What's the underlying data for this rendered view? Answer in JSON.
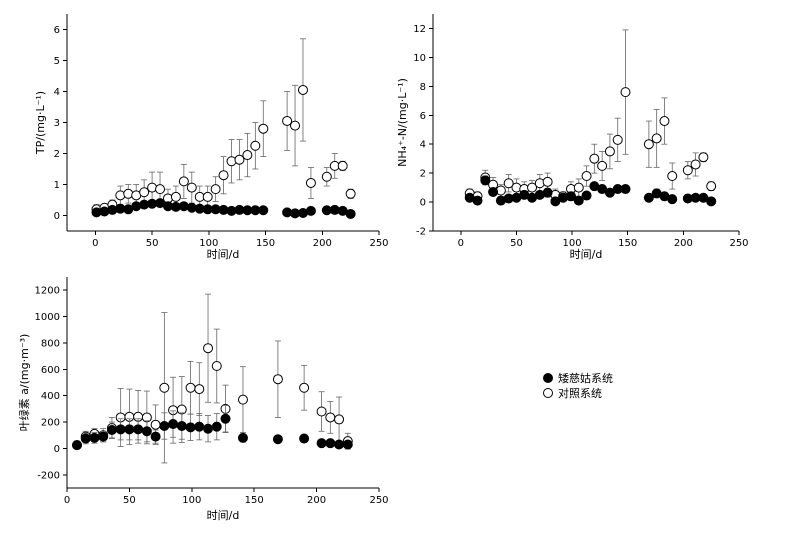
{
  "chart_data": [
    {
      "type": "scatter",
      "id": "tp",
      "xlabel": "时间/d",
      "ylabel": "TP/(mg·L⁻¹)",
      "xlim": [
        -25,
        250
      ],
      "ylim": [
        -0.5,
        6.5
      ],
      "xticks": [
        0,
        50,
        100,
        150,
        200,
        250
      ],
      "yticks": [
        0,
        1,
        2,
        3,
        4,
        5,
        6
      ],
      "series": [
        {
          "name": "矮慈姑系统",
          "marker": "filled-circle",
          "points": [
            [
              1,
              0.1,
              0.05
            ],
            [
              8,
              0.13,
              0.05
            ],
            [
              15,
              0.18,
              0.05
            ],
            [
              22,
              0.22,
              0.05
            ],
            [
              29,
              0.2,
              0.05
            ],
            [
              36,
              0.3,
              0.05
            ],
            [
              43,
              0.35,
              0.05
            ],
            [
              50,
              0.38,
              0.05
            ],
            [
              57,
              0.4,
              0.05
            ],
            [
              64,
              0.3,
              0.05
            ],
            [
              71,
              0.28,
              0.05
            ],
            [
              78,
              0.3,
              0.05
            ],
            [
              85,
              0.25,
              0.05
            ],
            [
              92,
              0.22,
              0.05
            ],
            [
              99,
              0.2,
              0.05
            ],
            [
              106,
              0.2,
              0.05
            ],
            [
              113,
              0.18,
              0.05
            ],
            [
              120,
              0.15,
              0.05
            ],
            [
              127,
              0.18,
              0.05
            ],
            [
              134,
              0.17,
              0.05
            ],
            [
              141,
              0.17,
              0.05
            ],
            [
              148,
              0.17,
              0.05
            ],
            [
              169,
              0.1,
              0.05
            ],
            [
              176,
              0.07,
              0.05
            ],
            [
              183,
              0.08,
              0.05
            ],
            [
              190,
              0.15,
              0.05
            ],
            [
              204,
              0.17,
              0.1
            ],
            [
              211,
              0.18,
              0.12
            ],
            [
              218,
              0.15,
              0.05
            ],
            [
              225,
              0.05,
              0.05
            ]
          ]
        },
        {
          "name": "对照系统",
          "marker": "open-circle",
          "points": [
            [
              1,
              0.2,
              0.15
            ],
            [
              8,
              0.25,
              0.1
            ],
            [
              15,
              0.35,
              0.15
            ],
            [
              22,
              0.65,
              0.3
            ],
            [
              29,
              0.7,
              0.3
            ],
            [
              36,
              0.65,
              0.35
            ],
            [
              43,
              0.75,
              0.4
            ],
            [
              50,
              0.9,
              0.5
            ],
            [
              57,
              0.85,
              0.55
            ],
            [
              64,
              0.55,
              0.3
            ],
            [
              71,
              0.6,
              0.35
            ],
            [
              78,
              1.1,
              0.55
            ],
            [
              85,
              0.9,
              0.5
            ],
            [
              92,
              0.6,
              0.35
            ],
            [
              99,
              0.6,
              0.35
            ],
            [
              106,
              0.85,
              0.4
            ],
            [
              113,
              1.3,
              0.6
            ],
            [
              120,
              1.75,
              0.7
            ],
            [
              127,
              1.8,
              0.65
            ],
            [
              134,
              1.95,
              0.7
            ],
            [
              141,
              2.25,
              0.75
            ],
            [
              148,
              2.8,
              0.9
            ],
            [
              169,
              3.05,
              0.95
            ],
            [
              176,
              2.9,
              1.3
            ],
            [
              183,
              4.05,
              1.65
            ],
            [
              190,
              1.05,
              0.5
            ],
            [
              204,
              1.25,
              0.3
            ],
            [
              211,
              1.6,
              0.4
            ],
            [
              218,
              1.6,
              0.15
            ],
            [
              225,
              0.7,
              0.15
            ]
          ]
        }
      ]
    },
    {
      "type": "scatter",
      "id": "nh",
      "xlabel": "时间/d",
      "ylabel": "NH₄⁺-N/(mg·L⁻¹)",
      "xlim": [
        -25,
        250
      ],
      "ylim": [
        -2,
        13
      ],
      "xticks": [
        0,
        50,
        100,
        150,
        200,
        250
      ],
      "yticks": [
        -2,
        0,
        2,
        4,
        6,
        8,
        10,
        12
      ],
      "series": [
        {
          "name": "矮慈姑系统",
          "marker": "filled-circle",
          "points": [
            [
              8,
              0.3,
              0.2
            ],
            [
              15,
              0.1,
              0.2
            ],
            [
              22,
              1.5,
              0.3
            ],
            [
              29,
              0.7,
              0.2
            ],
            [
              36,
              0.1,
              0.15
            ],
            [
              43,
              0.25,
              0.15
            ],
            [
              50,
              0.3,
              0.2
            ],
            [
              57,
              0.5,
              0.2
            ],
            [
              64,
              0.3,
              0.2
            ],
            [
              71,
              0.5,
              0.2
            ],
            [
              78,
              0.65,
              0.3
            ],
            [
              85,
              0.05,
              0.2
            ],
            [
              92,
              0.3,
              0.2
            ],
            [
              99,
              0.4,
              0.3
            ],
            [
              106,
              0.1,
              0.2
            ],
            [
              113,
              0.45,
              0.2
            ],
            [
              120,
              1.1,
              0.2
            ],
            [
              127,
              0.9,
              0.2
            ],
            [
              134,
              0.65,
              0.2
            ],
            [
              141,
              0.9,
              0.2
            ],
            [
              148,
              0.9,
              0.2
            ],
            [
              169,
              0.3,
              0.2
            ],
            [
              176,
              0.6,
              0.3
            ],
            [
              183,
              0.4,
              0.2
            ],
            [
              190,
              0.2,
              0.2
            ],
            [
              204,
              0.25,
              0.2
            ],
            [
              211,
              0.3,
              0.2
            ],
            [
              218,
              0.3,
              0.2
            ],
            [
              225,
              0.05,
              0.2
            ]
          ]
        },
        {
          "name": "对照系统",
          "marker": "open-circle",
          "points": [
            [
              8,
              0.6,
              0.3
            ],
            [
              15,
              0.4,
              0.3
            ],
            [
              22,
              1.7,
              0.5
            ],
            [
              29,
              1.2,
              0.5
            ],
            [
              36,
              0.8,
              0.4
            ],
            [
              43,
              1.3,
              0.6
            ],
            [
              50,
              1.0,
              0.6
            ],
            [
              57,
              0.9,
              0.5
            ],
            [
              64,
              1.0,
              0.5
            ],
            [
              71,
              1.3,
              0.6
            ],
            [
              78,
              1.4,
              0.6
            ],
            [
              85,
              0.5,
              0.4
            ],
            [
              92,
              0.4,
              0.3
            ],
            [
              99,
              0.9,
              0.5
            ],
            [
              106,
              1.0,
              0.6
            ],
            [
              113,
              1.8,
              0.7
            ],
            [
              120,
              3.0,
              1.0
            ],
            [
              127,
              2.5,
              1.0
            ],
            [
              134,
              3.5,
              1.2
            ],
            [
              141,
              4.3,
              1.5
            ],
            [
              148,
              7.6,
              4.3
            ],
            [
              169,
              4.0,
              1.6
            ],
            [
              176,
              4.4,
              2.0
            ],
            [
              183,
              5.6,
              1.6
            ],
            [
              190,
              1.8,
              0.9
            ],
            [
              204,
              2.2,
              0.6
            ],
            [
              211,
              2.6,
              0.8
            ],
            [
              218,
              3.1,
              0.3
            ],
            [
              225,
              1.1,
              0.3
            ]
          ]
        }
      ]
    },
    {
      "type": "scatter",
      "id": "chl",
      "xlabel": "时间/d",
      "ylabel": "叶绿素 a/(mg·m⁻³)",
      "xlim": [
        0,
        250
      ],
      "ylim": [
        -300,
        1300
      ],
      "xticks": [
        0,
        50,
        100,
        150,
        200,
        250
      ],
      "yticks": [
        -200,
        0,
        200,
        400,
        600,
        800,
        1000,
        1200
      ],
      "series": [
        {
          "name": "矮慈姑系统",
          "marker": "filled-circle",
          "points": [
            [
              8,
              25,
              30
            ],
            [
              15,
              75,
              40
            ],
            [
              22,
              80,
              40
            ],
            [
              29,
              90,
              40
            ],
            [
              36,
              140,
              60
            ],
            [
              43,
              145,
              80
            ],
            [
              50,
              145,
              80
            ],
            [
              57,
              145,
              80
            ],
            [
              64,
              130,
              80
            ],
            [
              71,
              90,
              50
            ],
            [
              78,
              170,
              100
            ],
            [
              85,
              185,
              100
            ],
            [
              92,
              170,
              100
            ],
            [
              99,
              160,
              100
            ],
            [
              106,
              165,
              100
            ],
            [
              113,
              150,
              100
            ],
            [
              120,
              165,
              100
            ],
            [
              127,
              225,
              100
            ],
            [
              141,
              80,
              30
            ],
            [
              169,
              70,
              20
            ],
            [
              190,
              75,
              20
            ],
            [
              204,
              40,
              20
            ],
            [
              211,
              40,
              20
            ],
            [
              218,
              30,
              20
            ],
            [
              225,
              30,
              20
            ]
          ]
        },
        {
          "name": "对照系统",
          "marker": "open-circle",
          "points": [
            [
              8,
              25,
              30
            ],
            [
              15,
              90,
              40
            ],
            [
              22,
              110,
              40
            ],
            [
              29,
              100,
              50
            ],
            [
              36,
              155,
              80
            ],
            [
              43,
              235,
              220
            ],
            [
              50,
              240,
              210
            ],
            [
              57,
              240,
              200
            ],
            [
              64,
              235,
              200
            ],
            [
              71,
              180,
              150
            ],
            [
              78,
              460,
              570
            ],
            [
              85,
              290,
              250
            ],
            [
              92,
              295,
              250
            ],
            [
              99,
              460,
              200
            ],
            [
              106,
              450,
              200
            ],
            [
              113,
              760,
              410
            ],
            [
              120,
              625,
              280
            ],
            [
              127,
              300,
              180
            ],
            [
              141,
              370,
              250
            ],
            [
              169,
              525,
              290
            ],
            [
              190,
              460,
              170
            ],
            [
              204,
              280,
              150
            ],
            [
              211,
              235,
              120
            ],
            [
              218,
              220,
              170
            ],
            [
              225,
              55,
              60
            ]
          ]
        }
      ]
    }
  ],
  "legend": {
    "position": "right of bottom chart",
    "items": [
      {
        "label": "矮慈姑系统",
        "marker": "filled-circle"
      },
      {
        "label": "对照系统",
        "marker": "open-circle"
      }
    ]
  }
}
